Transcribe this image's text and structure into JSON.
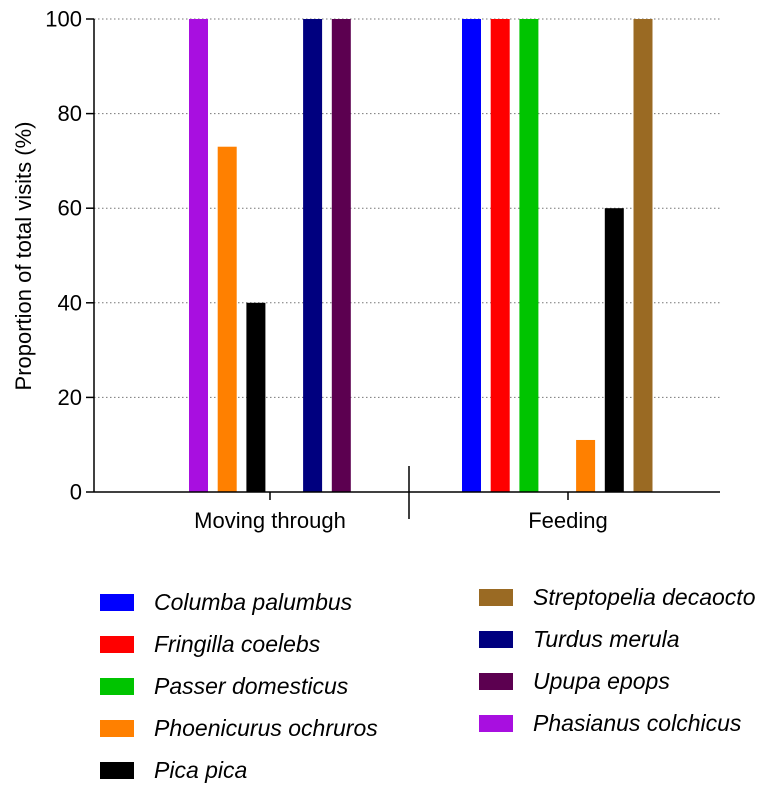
{
  "chart_data": {
    "type": "bar",
    "categories": [
      "Moving through",
      "Feeding"
    ],
    "ylabel": "Proportion of total visits (%)",
    "xlabel": "",
    "ylim": [
      0,
      100
    ],
    "yticks": [
      0,
      20,
      40,
      60,
      80,
      100
    ],
    "grid": "horizontal dotted",
    "legend_position": "bottom",
    "series": [
      {
        "name": "Columba palumbus",
        "color": "#0000ff",
        "values": [
          0,
          100
        ]
      },
      {
        "name": "Fringilla coelebs",
        "color": "#ff0000",
        "values": [
          0,
          100
        ]
      },
      {
        "name": "Passer domesticus",
        "color": "#00c400",
        "values": [
          0,
          100
        ]
      },
      {
        "name": "Phoenicurus ochruros",
        "color": "#ff8000",
        "values": [
          73,
          11
        ]
      },
      {
        "name": "Pica pica",
        "color": "#000000",
        "values": [
          40,
          60
        ]
      },
      {
        "name": "Streptopelia decaocto",
        "color": "#9a6a23",
        "values": [
          0,
          100
        ]
      },
      {
        "name": "Turdus merula",
        "color": "#00007f",
        "values": [
          100,
          0
        ]
      },
      {
        "name": "Upupa epops",
        "color": "#5c0050",
        "values": [
          100,
          0
        ]
      },
      {
        "name": "Phasianus colchicus",
        "color": "#a80fe0",
        "values": [
          100,
          0
        ]
      }
    ],
    "bar_order": {
      "Moving through": [
        "Phasianus colchicus",
        "Phoenicurus ochruros",
        "Pica pica",
        "Turdus merula",
        "Upupa epops"
      ],
      "Feeding": [
        "Columba palumbus",
        "Fringilla coelebs",
        "Passer domesticus",
        "Phoenicurus ochruros",
        "Pica pica",
        "Streptopelia decaocto"
      ]
    }
  }
}
